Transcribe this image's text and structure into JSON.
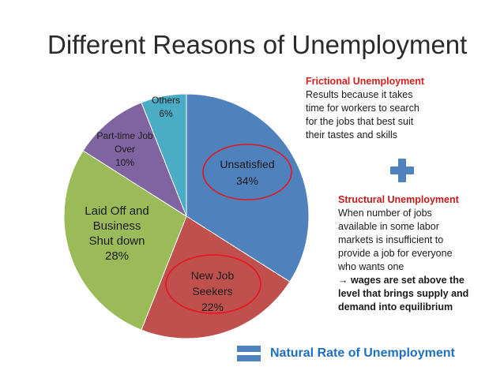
{
  "title": "Different Reasons of Unemployment",
  "chart_data": {
    "type": "pie",
    "categories": [
      "Unsatisfied",
      "New Job Seekers",
      "Laid Off and Business Shut down",
      "Part-time Job Over",
      "Others"
    ],
    "values": [
      34,
      22,
      28,
      10,
      6
    ],
    "unit": "%",
    "slice_labels": [
      [
        "Unsatisfied",
        "34%"
      ],
      [
        "New Job",
        "Seekers",
        "22%"
      ],
      [
        "Laid Off and",
        "Business",
        "Shut down",
        "28%"
      ],
      [
        "Part-time Job",
        "Over",
        "10%"
      ],
      [
        "Others",
        "6%"
      ]
    ],
    "colors": [
      "#4f81bd",
      "#c0504d",
      "#9bbb59",
      "#8064a2",
      "#4bacc6"
    ],
    "start_angle_deg": 0,
    "direction": "clockwise",
    "highlight_circles": [
      "Unsatisfied",
      "New Job Seekers"
    ],
    "highlight_color": "#e8141c"
  },
  "frictional": {
    "heading": "Frictional Unemployment",
    "lines": [
      "Results because it takes",
      "time for workers to search",
      "for the jobs that best suit",
      "their tastes and skills"
    ]
  },
  "structural": {
    "heading": "Structural Unemployment",
    "lines": [
      "When number of jobs",
      "available in some labor",
      "markets is insufficient to",
      "provide a job for everyone",
      "who wants one"
    ],
    "bold_lines": [
      "→ wages are set above the",
      "level that brings supply and",
      "demand into equilibrium"
    ]
  },
  "plus_icon": "plus-icon",
  "equals_icon": "equals-icon",
  "conclusion": "Natural Rate of Unemployment"
}
